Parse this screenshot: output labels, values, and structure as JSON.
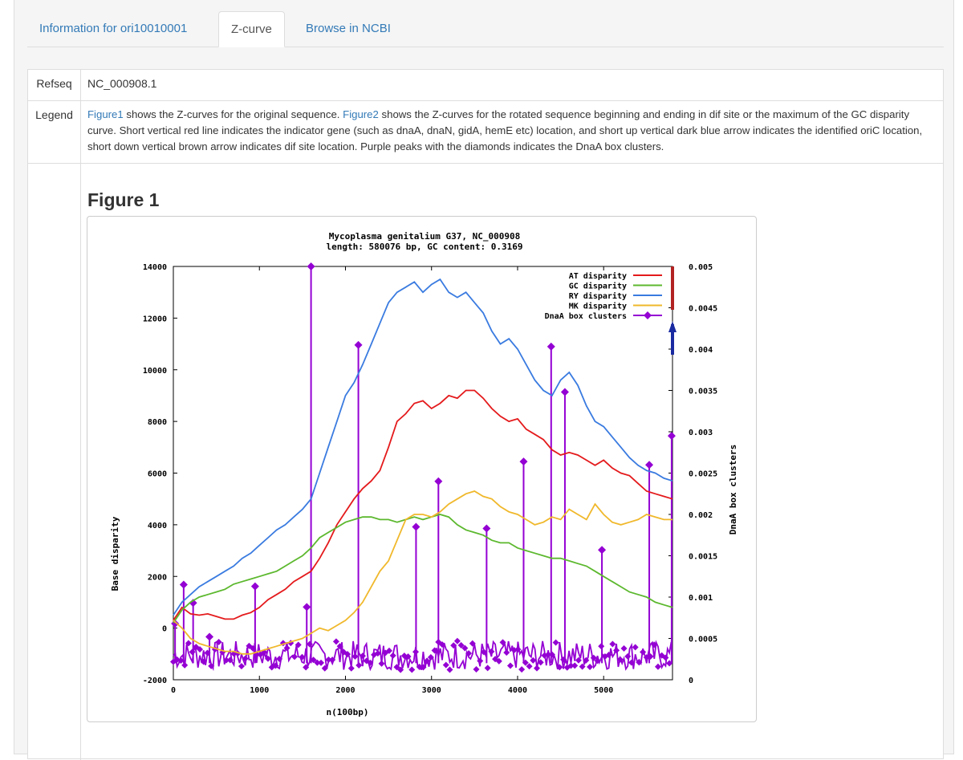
{
  "tabs": [
    {
      "label": "Information for ori10010001",
      "active": false
    },
    {
      "label": "Z-curve",
      "active": true
    },
    {
      "label": "Browse in NCBI",
      "active": false
    }
  ],
  "refseq": {
    "label": "Refseq",
    "value": "NC_000908.1"
  },
  "legend": {
    "label": "Legend",
    "figure1_link": "Figure1",
    "text1": " shows the Z-curves for the original sequence. ",
    "figure2_link": "Figure2",
    "text2": " shows the Z-curves for the rotated sequence beginning and ending in dif site or the maximum of the GC disparity curve. Short vertical red line indicates the indicator gene (such as dnaA, dnaN, gidA, hemE etc) location, and short up vertical dark blue arrow indicates the identified oriC location, short down vertical brown arrow indicates dif site location. Purple peaks with the diamonds indicates the DnaA box clusters."
  },
  "figure_heading": "Figure 1",
  "chart_data": {
    "type": "line",
    "title": "Mycoplasma genitalium G37, NC_000908",
    "subtitle": "length: 580076 bp, GC content: 0.3169",
    "xlabel": "n(100bp)",
    "ylabel": "Base disparity",
    "y2label": "DnaA box clusters",
    "xlim": [
      0,
      5800
    ],
    "ylim": [
      -2000,
      14000
    ],
    "y2lim": [
      0,
      0.005
    ],
    "xticks": [
      "0",
      "1000",
      "2000",
      "3000",
      "4000",
      "5000"
    ],
    "yticks": [
      "-2000",
      "0",
      "2000",
      "4000",
      "6000",
      "8000",
      "10000",
      "12000",
      "14000"
    ],
    "y2ticks": [
      "0",
      "0.0005",
      "0.001",
      "0.0015",
      "0.002",
      "0.0025",
      "0.003",
      "0.0035",
      "0.004",
      "0.0045",
      "0.005"
    ],
    "grid": false,
    "legend_position": "top-right",
    "colors": {
      "at": "#e41a1c",
      "gc": "#5cb82e",
      "ry": "#3a7be0",
      "mk": "#f0b82b",
      "dnaa": "#9400d3",
      "indicator": "#b22222",
      "oric": "#1a2aa0"
    },
    "series": [
      {
        "name": "AT disparity",
        "color": "#e41a1c",
        "x": [
          0,
          100,
          200,
          300,
          400,
          500,
          600,
          700,
          800,
          900,
          1000,
          1100,
          1200,
          1300,
          1400,
          1500,
          1600,
          1700,
          1800,
          1900,
          2000,
          2100,
          2200,
          2300,
          2400,
          2500,
          2600,
          2700,
          2800,
          2900,
          3000,
          3100,
          3200,
          3300,
          3400,
          3500,
          3600,
          3700,
          3800,
          3900,
          4000,
          4100,
          4200,
          4300,
          4400,
          4500,
          4600,
          4700,
          4800,
          4900,
          5000,
          5100,
          5200,
          5300,
          5400,
          5500,
          5600,
          5700,
          5800
        ],
        "y": [
          300,
          800,
          550,
          500,
          550,
          450,
          350,
          350,
          500,
          600,
          800,
          1100,
          1300,
          1500,
          1800,
          2000,
          2200,
          2700,
          3300,
          4000,
          4500,
          5000,
          5400,
          5700,
          6100,
          7000,
          8000,
          8300,
          8700,
          8800,
          8500,
          8700,
          9000,
          8900,
          9200,
          9200,
          8900,
          8500,
          8200,
          8000,
          8100,
          7700,
          7500,
          7300,
          6900,
          6700,
          6800,
          6700,
          6500,
          6300,
          6500,
          6200,
          6000,
          5900,
          5600,
          5300,
          5200,
          5100,
          5000
        ]
      },
      {
        "name": "GC disparity",
        "color": "#5cb82e",
        "x": [
          0,
          100,
          200,
          300,
          400,
          500,
          600,
          700,
          800,
          900,
          1000,
          1100,
          1200,
          1300,
          1400,
          1500,
          1600,
          1700,
          1800,
          1900,
          2000,
          2100,
          2200,
          2300,
          2400,
          2500,
          2600,
          2700,
          2800,
          2900,
          3000,
          3100,
          3200,
          3300,
          3400,
          3500,
          3600,
          3700,
          3800,
          3900,
          4000,
          4100,
          4200,
          4300,
          4400,
          4500,
          4600,
          4700,
          4800,
          4900,
          5000,
          5100,
          5200,
          5300,
          5400,
          5500,
          5600,
          5700,
          5800
        ],
        "y": [
          200,
          700,
          1000,
          1200,
          1300,
          1400,
          1500,
          1700,
          1800,
          1900,
          2000,
          2100,
          2200,
          2400,
          2600,
          2800,
          3100,
          3500,
          3700,
          3900,
          4100,
          4200,
          4300,
          4300,
          4200,
          4200,
          4100,
          4200,
          4300,
          4200,
          4300,
          4400,
          4300,
          4000,
          3800,
          3700,
          3600,
          3400,
          3300,
          3300,
          3100,
          3000,
          2900,
          2800,
          2700,
          2700,
          2600,
          2500,
          2400,
          2200,
          2000,
          1800,
          1600,
          1400,
          1300,
          1200,
          1000,
          900,
          800
        ]
      },
      {
        "name": "RY disparity",
        "color": "#3a7be0",
        "x": [
          0,
          100,
          200,
          300,
          400,
          500,
          600,
          700,
          800,
          900,
          1000,
          1100,
          1200,
          1300,
          1400,
          1500,
          1600,
          1700,
          1800,
          1900,
          2000,
          2100,
          2200,
          2300,
          2400,
          2500,
          2600,
          2700,
          2800,
          2900,
          3000,
          3100,
          3200,
          3300,
          3400,
          3500,
          3600,
          3700,
          3800,
          3900,
          4000,
          4100,
          4200,
          4300,
          4400,
          4500,
          4600,
          4700,
          4800,
          4900,
          5000,
          5100,
          5200,
          5300,
          5400,
          5500,
          5600,
          5700,
          5800
        ],
        "y": [
          500,
          1000,
          1300,
          1600,
          1800,
          2000,
          2200,
          2400,
          2700,
          2900,
          3200,
          3500,
          3800,
          4000,
          4300,
          4600,
          5000,
          6000,
          7000,
          8000,
          9000,
          9500,
          10200,
          11000,
          11800,
          12600,
          13000,
          13200,
          13400,
          13000,
          13300,
          13500,
          13000,
          12800,
          13000,
          12600,
          12200,
          11500,
          11000,
          11200,
          10800,
          10200,
          9600,
          9200,
          9000,
          9600,
          9900,
          9400,
          8600,
          8000,
          7800,
          7400,
          7000,
          6600,
          6300,
          6100,
          6000,
          5800,
          5700
        ]
      },
      {
        "name": "MK disparity",
        "color": "#f0b82b",
        "x": [
          0,
          100,
          200,
          300,
          400,
          500,
          600,
          700,
          800,
          900,
          1000,
          1100,
          1200,
          1300,
          1400,
          1500,
          1600,
          1700,
          1800,
          1900,
          2000,
          2100,
          2200,
          2300,
          2400,
          2500,
          2600,
          2700,
          2800,
          2900,
          3000,
          3100,
          3200,
          3300,
          3400,
          3500,
          3600,
          3700,
          3800,
          3900,
          4000,
          4100,
          4200,
          4300,
          4400,
          4500,
          4600,
          4700,
          4800,
          4900,
          5000,
          5100,
          5200,
          5300,
          5400,
          5500,
          5600,
          5700,
          5800
        ],
        "y": [
          300,
          0,
          -400,
          -600,
          -700,
          -800,
          -900,
          -900,
          -1000,
          -1000,
          -900,
          -800,
          -700,
          -600,
          -500,
          -400,
          -200,
          0,
          -100,
          100,
          300,
          600,
          1000,
          1600,
          2200,
          2600,
          3400,
          4200,
          4400,
          4400,
          4300,
          4500,
          4800,
          5000,
          5200,
          5300,
          5100,
          5000,
          4700,
          4500,
          4400,
          4200,
          4000,
          4100,
          4300,
          4200,
          4600,
          4400,
          4200,
          4800,
          4400,
          4100,
          4000,
          4100,
          4200,
          4400,
          4300,
          4200,
          4200
        ]
      },
      {
        "name": "DnaA box clusters",
        "color": "#9400d3",
        "axis": "y2",
        "x": [
          20,
          120,
          230,
          420,
          950,
          1550,
          1600,
          2150,
          2820,
          3080,
          3640,
          4070,
          4390,
          4550,
          4980,
          5530,
          5790
        ],
        "y": [
          0.00068,
          0.00115,
          0.00093,
          0.00052,
          0.00113,
          0.00088,
          0.005,
          0.00405,
          0.00185,
          0.0024,
          0.00183,
          0.00264,
          0.00403,
          0.00348,
          0.00157,
          0.0026,
          0.00295
        ]
      }
    ],
    "markers": [
      {
        "label": "indicator gene",
        "color": "#b22222"
      },
      {
        "label": "oriC",
        "color": "#1a2aa0"
      }
    ]
  }
}
